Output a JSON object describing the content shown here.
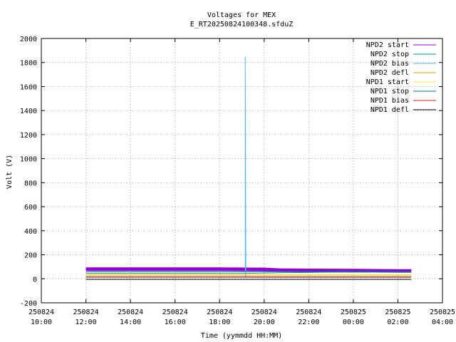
{
  "chart_data": {
    "type": "line",
    "title": "Voltages for MEX",
    "subtitle": "E_RT20250824100348.sfduZ",
    "xlabel": "Time (yymmdd HH:MM)",
    "ylabel": "Volt (V)",
    "ylim": [
      -200,
      2000
    ],
    "yticks": [
      -200,
      0,
      200,
      400,
      600,
      800,
      1000,
      1200,
      1400,
      1600,
      1800,
      2000
    ],
    "xlim_hours": [
      10,
      28
    ],
    "xticks": [
      {
        "date": "250824",
        "time": "10:00"
      },
      {
        "date": "250824",
        "time": "12:00"
      },
      {
        "date": "250824",
        "time": "14:00"
      },
      {
        "date": "250824",
        "time": "16:00"
      },
      {
        "date": "250824",
        "time": "18:00"
      },
      {
        "date": "250824",
        "time": "20:00"
      },
      {
        "date": "250824",
        "time": "22:00"
      },
      {
        "date": "250825",
        "time": "00:00"
      },
      {
        "date": "250825",
        "time": "02:00"
      },
      {
        "date": "250825",
        "time": "04:00"
      }
    ],
    "grid": true,
    "legend_position": "top-right",
    "series": [
      {
        "name": "NPD2 start",
        "color": "#9400d3",
        "points": [
          [
            12.0,
            80
          ],
          [
            14.0,
            80
          ],
          [
            16.0,
            80
          ],
          [
            18.0,
            80
          ],
          [
            20.0,
            78
          ],
          [
            20.7,
            72
          ],
          [
            22.0,
            70
          ],
          [
            24.0,
            68
          ],
          [
            26.0,
            65
          ],
          [
            26.6,
            65
          ]
        ]
      },
      {
        "name": "NPD2 stop",
        "color": "#009e73",
        "points": [
          [
            12.0,
            45
          ],
          [
            15.0,
            45
          ],
          [
            19.0,
            45
          ],
          [
            20.7,
            50
          ],
          [
            23.0,
            55
          ],
          [
            26.6,
            55
          ]
        ]
      },
      {
        "name": "NPD2 bias",
        "color": "#56b4e9",
        "points": [
          [
            12.0,
            10
          ],
          [
            19.15,
            10
          ],
          [
            19.15,
            1850
          ],
          [
            19.18,
            10
          ],
          [
            26.6,
            10
          ]
        ]
      },
      {
        "name": "NPD2 defl",
        "color": "#e69f00",
        "points": [
          [
            12.0,
            25
          ],
          [
            20.0,
            25
          ],
          [
            26.6,
            25
          ]
        ]
      },
      {
        "name": "NPD1 start",
        "color": "#f0e442",
        "points": [
          [
            12.0,
            35
          ],
          [
            20.0,
            35
          ],
          [
            26.6,
            35
          ]
        ]
      },
      {
        "name": "NPD1 stop",
        "color": "#0072b2",
        "points": [
          [
            12.0,
            60
          ],
          [
            20.0,
            60
          ],
          [
            20.7,
            60
          ],
          [
            26.6,
            60
          ]
        ]
      },
      {
        "name": "NPD1 bias",
        "color": "#e51e10",
        "points": [
          [
            12.0,
            15
          ],
          [
            20.0,
            15
          ],
          [
            26.6,
            15
          ]
        ]
      },
      {
        "name": "NPD1 defl",
        "color": "#000000",
        "points": [
          [
            12.0,
            -5
          ],
          [
            26.6,
            -5
          ]
        ]
      }
    ]
  }
}
